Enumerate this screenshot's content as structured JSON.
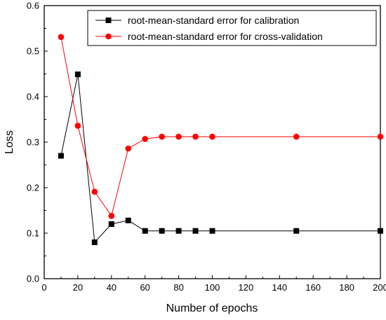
{
  "chart_data": {
    "type": "line",
    "xlabel": "Number of epochs",
    "ylabel": "Loss",
    "xlim": [
      0,
      200
    ],
    "ylim": [
      0.0,
      0.6
    ],
    "x_ticks": [
      "0",
      "20",
      "40",
      "60",
      "80",
      "100",
      "120",
      "140",
      "160",
      "180",
      "200"
    ],
    "y_ticks": [
      "0.0",
      "0.1",
      "0.2",
      "0.3",
      "0.4",
      "0.5",
      "0.6"
    ],
    "grid": false,
    "legend_position": "top-right",
    "series": [
      {
        "name": "root-mean-standard error for calibration",
        "color": "#000000",
        "marker": "square",
        "x": [
          10,
          20,
          30,
          40,
          50,
          60,
          70,
          80,
          90,
          100,
          150,
          200
        ],
        "y": [
          0.27,
          0.449,
          0.08,
          0.12,
          0.128,
          0.105,
          0.105,
          0.105,
          0.105,
          0.105,
          0.105,
          0.105
        ]
      },
      {
        "name": "root-mean-standard error for cross-validation",
        "color": "#ff0000",
        "marker": "circle",
        "x": [
          10,
          20,
          30,
          40,
          50,
          60,
          70,
          80,
          90,
          100,
          150,
          200
        ],
        "y": [
          0.531,
          0.336,
          0.191,
          0.138,
          0.286,
          0.307,
          0.312,
          0.312,
          0.312,
          0.312,
          0.312,
          0.312
        ]
      }
    ]
  }
}
